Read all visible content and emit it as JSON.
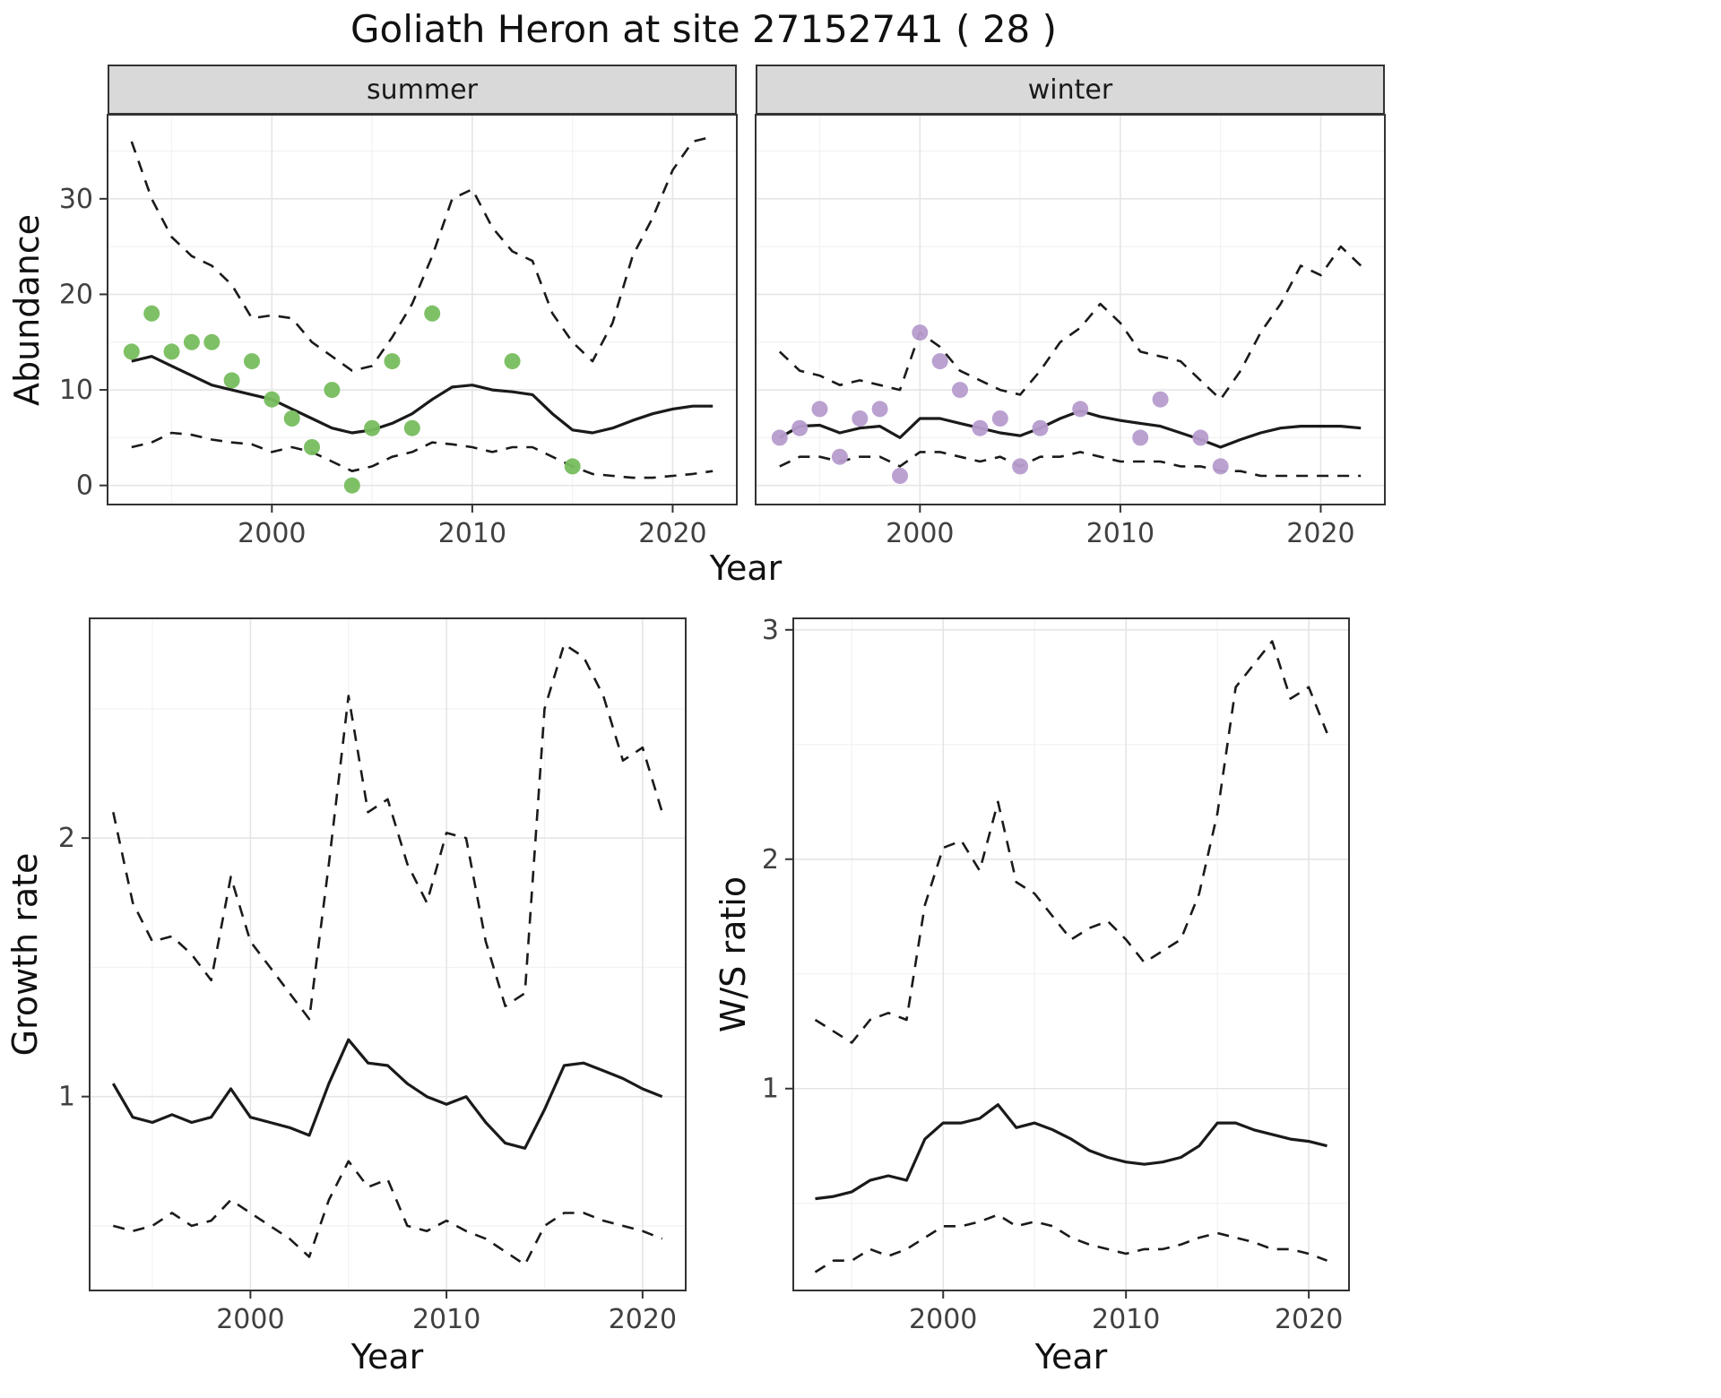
{
  "title": "Goliath Heron at site 27152741 ( 28 )",
  "facets": {
    "summer": "summer",
    "winter": "winter"
  },
  "axes": {
    "abundance": {
      "ylabel": "Abundance",
      "xlabel": "Year"
    },
    "growth": {
      "ylabel": "Growth rate",
      "xlabel": "Year"
    },
    "ws": {
      "ylabel": "W/S ratio",
      "xlabel": "Year"
    }
  },
  "colors": {
    "summer_point": "#77bd5e",
    "winter_point": "#b69cce",
    "line": "#1a1a1a",
    "panel_border": "#333333",
    "strip_bg": "#d9d9d9",
    "grid_major": "#e5e5e5",
    "grid_minor": "#f2f2f2",
    "axis": "#333333",
    "axis_text": "#404040"
  },
  "chart_data": [
    {
      "id": "abundance_summer",
      "type": "line",
      "facet": "summer",
      "title": "Goliath Heron at site 27152741 ( 28 )",
      "xlabel": "Year",
      "ylabel": "Abundance",
      "xlim": [
        1991.8,
        2023.2
      ],
      "ylim": [
        -2,
        38.8
      ],
      "xticks": [
        2000,
        2010,
        2020
      ],
      "yticks": [
        0,
        10,
        20,
        30
      ],
      "xticks_minor": [
        1995,
        2005,
        2015
      ],
      "yticks_minor": [
        5,
        15,
        25,
        35
      ],
      "x": [
        1993,
        1994,
        1995,
        1996,
        1997,
        1998,
        1999,
        2000,
        2001,
        2002,
        2003,
        2004,
        2005,
        2006,
        2007,
        2008,
        2009,
        2010,
        2011,
        2012,
        2013,
        2014,
        2015,
        2016,
        2017,
        2018,
        2019,
        2020,
        2021,
        2022
      ],
      "series": [
        {
          "name": "median_fit",
          "style": "solid",
          "values": [
            13.0,
            13.5,
            12.5,
            11.5,
            10.5,
            10.0,
            9.5,
            9.0,
            8.0,
            7.0,
            6.0,
            5.5,
            5.8,
            6.5,
            7.5,
            9.0,
            10.3,
            10.5,
            10.0,
            9.8,
            9.5,
            7.5,
            5.8,
            5.5,
            6.0,
            6.8,
            7.5,
            8.0,
            8.3,
            8.3
          ]
        },
        {
          "name": "upper_ci",
          "style": "dashed",
          "values": [
            36,
            30,
            26,
            24,
            23,
            21,
            17.5,
            17.8,
            17.5,
            15,
            13.5,
            12,
            12.5,
            15.5,
            19,
            24,
            30,
            31,
            27,
            24.5,
            23.5,
            18,
            15,
            13,
            17,
            24,
            28,
            33,
            36,
            36.5
          ]
        },
        {
          "name": "lower_ci",
          "style": "dashed",
          "values": [
            4,
            4.5,
            5.5,
            5.3,
            4.8,
            4.5,
            4.3,
            3.5,
            4,
            3.5,
            2.5,
            1.5,
            2,
            3,
            3.5,
            4.5,
            4.3,
            4,
            3.5,
            4,
            4,
            3,
            2,
            1.2,
            1,
            0.8,
            0.8,
            1,
            1.2,
            1.5
          ]
        }
      ],
      "points": {
        "name": "observed_counts_summer",
        "color_key": "summer_point",
        "x": [
          1993,
          1994,
          1995,
          1996,
          1997,
          1998,
          1999,
          2000,
          2001,
          2002,
          2003,
          2004,
          2005,
          2006,
          2007,
          2008,
          2012,
          2015
        ],
        "y": [
          14,
          18,
          14,
          15,
          15,
          11,
          13,
          9,
          7,
          4,
          10,
          0,
          6,
          13,
          6,
          18,
          13,
          2
        ]
      }
    },
    {
      "id": "abundance_winter",
      "type": "line",
      "facet": "winter",
      "title": "Goliath Heron at site 27152741 ( 28 )",
      "xlabel": "Year",
      "ylabel": "Abundance",
      "xlim": [
        1991.8,
        2023.2
      ],
      "ylim": [
        -2,
        38.8
      ],
      "xticks": [
        2000,
        2010,
        2020
      ],
      "yticks": [
        0,
        10,
        20,
        30
      ],
      "xticks_minor": [
        1995,
        2005,
        2015
      ],
      "yticks_minor": [
        5,
        15,
        25,
        35
      ],
      "x": [
        1993,
        1994,
        1995,
        1996,
        1997,
        1998,
        1999,
        2000,
        2001,
        2002,
        2003,
        2004,
        2005,
        2006,
        2007,
        2008,
        2009,
        2010,
        2011,
        2012,
        2013,
        2014,
        2015,
        2016,
        2017,
        2018,
        2019,
        2020,
        2021,
        2022
      ],
      "series": [
        {
          "name": "median_fit",
          "style": "solid",
          "values": [
            5.0,
            6.2,
            6.3,
            5.5,
            6.0,
            6.2,
            5.0,
            7.0,
            7.0,
            6.5,
            6.0,
            5.5,
            5.2,
            6.0,
            7.0,
            7.8,
            7.2,
            6.8,
            6.5,
            6.2,
            5.5,
            4.8,
            4.0,
            4.8,
            5.5,
            6.0,
            6.2,
            6.2,
            6.2,
            6.0
          ]
        },
        {
          "name": "upper_ci",
          "style": "dashed",
          "values": [
            14,
            12,
            11.5,
            10.5,
            11,
            10.5,
            10,
            16,
            14.5,
            12,
            11,
            10,
            9.5,
            12,
            15,
            16.5,
            19,
            17,
            14,
            13.5,
            13,
            11,
            9,
            12,
            16,
            19,
            23,
            22,
            25,
            23
          ]
        },
        {
          "name": "lower_ci",
          "style": "dashed",
          "values": [
            2,
            3,
            3,
            2.5,
            3,
            3,
            2,
            3.5,
            3.5,
            3,
            2.5,
            3,
            2,
            3,
            3,
            3.5,
            3,
            2.5,
            2.5,
            2.5,
            2,
            2,
            1.5,
            1.5,
            1,
            1,
            1,
            1,
            1,
            1
          ]
        }
      ],
      "points": {
        "name": "observed_counts_winter",
        "color_key": "winter_point",
        "x": [
          1993,
          1994,
          1995,
          1996,
          1997,
          1998,
          1999,
          2000,
          2001,
          2002,
          2003,
          2004,
          2005,
          2006,
          2008,
          2011,
          2012,
          2014,
          2015
        ],
        "y": [
          5,
          6,
          8,
          3,
          7,
          8,
          1,
          16,
          13,
          10,
          6,
          7,
          2,
          6,
          8,
          5,
          9,
          5,
          2
        ]
      }
    },
    {
      "id": "growth_rate",
      "type": "line",
      "title": "",
      "xlabel": "Year",
      "ylabel": "Growth rate",
      "xlim": [
        1991.8,
        2022.2
      ],
      "ylim": [
        0.25,
        2.85
      ],
      "xticks": [
        2000,
        2010,
        2020
      ],
      "yticks": [
        1,
        2
      ],
      "xticks_minor": [
        1995,
        2005,
        2015
      ],
      "yticks_minor": [
        0.5,
        1.5,
        2.5
      ],
      "x": [
        1993,
        1994,
        1995,
        1996,
        1997,
        1998,
        1999,
        2000,
        2001,
        2002,
        2003,
        2004,
        2005,
        2006,
        2007,
        2008,
        2009,
        2010,
        2011,
        2012,
        2013,
        2014,
        2015,
        2016,
        2017,
        2018,
        2019,
        2020,
        2021
      ],
      "series": [
        {
          "name": "median_growth_rate",
          "style": "solid",
          "values": [
            1.05,
            0.92,
            0.9,
            0.93,
            0.9,
            0.92,
            1.03,
            0.92,
            0.9,
            0.88,
            0.85,
            1.05,
            1.22,
            1.13,
            1.12,
            1.05,
            1.0,
            0.97,
            1.0,
            0.9,
            0.82,
            0.8,
            0.95,
            1.12,
            1.13,
            1.1,
            1.07,
            1.03,
            1.0
          ]
        },
        {
          "name": "upper_ci",
          "style": "dashed",
          "values": [
            2.1,
            1.75,
            1.6,
            1.62,
            1.55,
            1.45,
            1.85,
            1.6,
            1.5,
            1.4,
            1.3,
            1.9,
            2.55,
            2.1,
            2.15,
            1.9,
            1.75,
            2.02,
            2.0,
            1.6,
            1.35,
            1.4,
            2.5,
            2.75,
            2.7,
            2.55,
            2.3,
            2.35,
            2.1
          ]
        },
        {
          "name": "lower_ci",
          "style": "dashed",
          "values": [
            0.5,
            0.48,
            0.5,
            0.55,
            0.5,
            0.52,
            0.6,
            0.55,
            0.5,
            0.45,
            0.38,
            0.6,
            0.75,
            0.65,
            0.68,
            0.5,
            0.48,
            0.52,
            0.48,
            0.45,
            0.4,
            0.35,
            0.5,
            0.55,
            0.55,
            0.52,
            0.5,
            0.48,
            0.45
          ]
        }
      ]
    },
    {
      "id": "ws_ratio",
      "type": "line",
      "title": "",
      "xlabel": "Year",
      "ylabel": "W/S ratio",
      "xlim": [
        1991.8,
        2022.2
      ],
      "ylim": [
        0.12,
        3.05
      ],
      "xticks": [
        2000,
        2010,
        2020
      ],
      "yticks": [
        1,
        2,
        3
      ],
      "xticks_minor": [
        1995,
        2005,
        2015
      ],
      "yticks_minor": [
        0.5,
        1.5,
        2.5
      ],
      "x": [
        1993,
        1994,
        1995,
        1996,
        1997,
        1998,
        1999,
        2000,
        2001,
        2002,
        2003,
        2004,
        2005,
        2006,
        2007,
        2008,
        2009,
        2010,
        2011,
        2012,
        2013,
        2014,
        2015,
        2016,
        2017,
        2018,
        2019,
        2020,
        2021
      ],
      "series": [
        {
          "name": "median_ws_ratio",
          "style": "solid",
          "values": [
            0.52,
            0.53,
            0.55,
            0.6,
            0.62,
            0.6,
            0.78,
            0.85,
            0.85,
            0.87,
            0.93,
            0.83,
            0.85,
            0.82,
            0.78,
            0.73,
            0.7,
            0.68,
            0.67,
            0.68,
            0.7,
            0.75,
            0.85,
            0.85,
            0.82,
            0.8,
            0.78,
            0.77,
            0.75
          ]
        },
        {
          "name": "upper_ci",
          "style": "dashed",
          "values": [
            1.3,
            1.25,
            1.2,
            1.3,
            1.33,
            1.3,
            1.8,
            2.05,
            2.08,
            1.95,
            2.25,
            1.9,
            1.85,
            1.75,
            1.65,
            1.7,
            1.73,
            1.65,
            1.55,
            1.6,
            1.65,
            1.85,
            2.2,
            2.75,
            2.85,
            2.95,
            2.7,
            2.75,
            2.55
          ]
        },
        {
          "name": "lower_ci",
          "style": "dashed",
          "values": [
            0.2,
            0.25,
            0.25,
            0.3,
            0.27,
            0.3,
            0.35,
            0.4,
            0.4,
            0.42,
            0.45,
            0.4,
            0.42,
            0.4,
            0.35,
            0.32,
            0.3,
            0.28,
            0.3,
            0.3,
            0.32,
            0.35,
            0.37,
            0.35,
            0.33,
            0.3,
            0.3,
            0.28,
            0.25
          ]
        }
      ]
    }
  ]
}
